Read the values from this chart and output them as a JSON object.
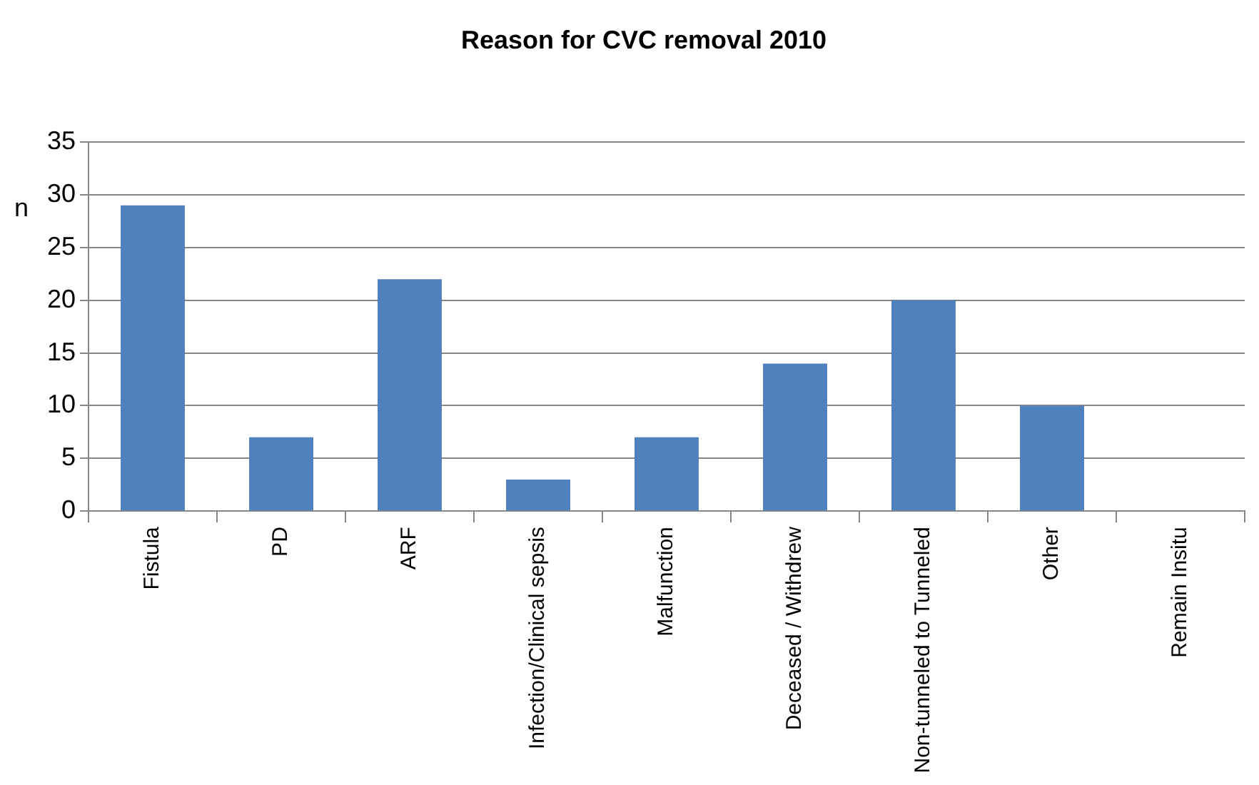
{
  "chart_data": {
    "type": "bar",
    "title": "Reason for CVC removal 2010",
    "ylabel": "n",
    "categories": [
      "Fistula",
      "PD",
      "ARF",
      "Infection/Clinical sepsis",
      "Malfunction",
      "Deceased / Withdrew",
      "Non-tunneled to Tunneled",
      "Other",
      "Remain Insitu"
    ],
    "values": [
      29,
      7,
      22,
      3,
      7,
      14,
      20,
      10,
      0
    ],
    "color": "#4f81bd",
    "ylim": [
      0,
      35
    ],
    "yticks": [
      0,
      5,
      10,
      15,
      20,
      25,
      30,
      35
    ],
    "grid": "y"
  }
}
